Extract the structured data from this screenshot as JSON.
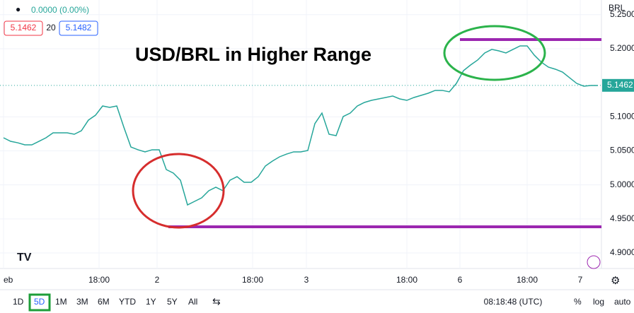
{
  "chart_data": {
    "type": "line",
    "title": "USD/BRL in Higher Range",
    "change": "0.0000 (0.00%)",
    "bid": "5.1462",
    "spread": "20",
    "ask": "5.1482",
    "currency": "BRL",
    "last_price": 5.1462,
    "series": [
      {
        "name": "USD/BRL",
        "color": "#26a69a",
        "values": [
          5.0692,
          5.064,
          5.0619,
          5.0588,
          5.0588,
          5.064,
          5.0692,
          5.0765,
          5.0765,
          5.0765,
          5.0744,
          5.0796,
          5.0952,
          5.1024,
          5.1159,
          5.1138,
          5.1159,
          5.0848,
          5.0557,
          5.0516,
          5.0485,
          5.0516,
          5.0516,
          5.0225,
          5.0173,
          5.0069,
          4.9706,
          4.9758,
          4.981,
          4.9914,
          4.9966,
          4.9914,
          5.0069,
          5.0121,
          5.0038,
          5.0038,
          5.0121,
          5.0277,
          5.035,
          5.0412,
          5.0453,
          5.0485,
          5.0485,
          5.0505,
          5.09,
          5.1055,
          5.0744,
          5.0723,
          5.1004,
          5.1055,
          5.1159,
          5.1211,
          5.1242,
          5.1263,
          5.1284,
          5.1305,
          5.1263,
          5.1242,
          5.1284,
          5.1315,
          5.1346,
          5.1388,
          5.1388,
          5.1367,
          5.1491,
          5.1678,
          5.1761,
          5.1834,
          5.1938,
          5.199,
          5.1969,
          5.1938,
          5.199,
          5.2042,
          5.2042,
          5.1907,
          5.1803,
          5.173,
          5.1699,
          5.1657,
          5.1574,
          5.1491,
          5.145,
          5.146,
          5.146
        ]
      }
    ],
    "levels": [
      {
        "value": 5.2135,
        "color": "#9c27b0"
      },
      {
        "value": 4.9384,
        "color": "#9c27b0"
      }
    ],
    "xlim": [
      0,
      85
    ],
    "xticks": [
      {
        "value": 0,
        "label": "eb"
      },
      {
        "value": 13.5,
        "label": "18:00"
      },
      {
        "value": 21.7,
        "label": "2"
      },
      {
        "value": 35.2,
        "label": "18:00"
      },
      {
        "value": 42.8,
        "label": "3"
      },
      {
        "value": 57,
        "label": "18:00"
      },
      {
        "value": 64.5,
        "label": "6"
      },
      {
        "value": 74,
        "label": "18:00"
      },
      {
        "value": 81.5,
        "label": "7"
      }
    ],
    "ylim": [
      4.8772,
      5.2716
    ],
    "yticks": [
      {
        "value": 4.9,
        "label": "4.9000"
      },
      {
        "value": 4.95,
        "label": "4.9500"
      },
      {
        "value": 5.0,
        "label": "5.0000"
      },
      {
        "value": 5.05,
        "label": "5.0500"
      },
      {
        "value": 5.1,
        "label": "5.1000"
      },
      {
        "value": 5.2,
        "label": "5.2000"
      },
      {
        "value": 5.25,
        "label": "5.2500"
      }
    ],
    "ranges": [
      "1D",
      "5D",
      "1M",
      "3M",
      "6M",
      "YTD",
      "1Y",
      "5Y",
      "All"
    ],
    "selected_range": "5D",
    "clock": "08:18:48 (UTC)",
    "scale_options": [
      "%",
      "log",
      "auto"
    ]
  }
}
